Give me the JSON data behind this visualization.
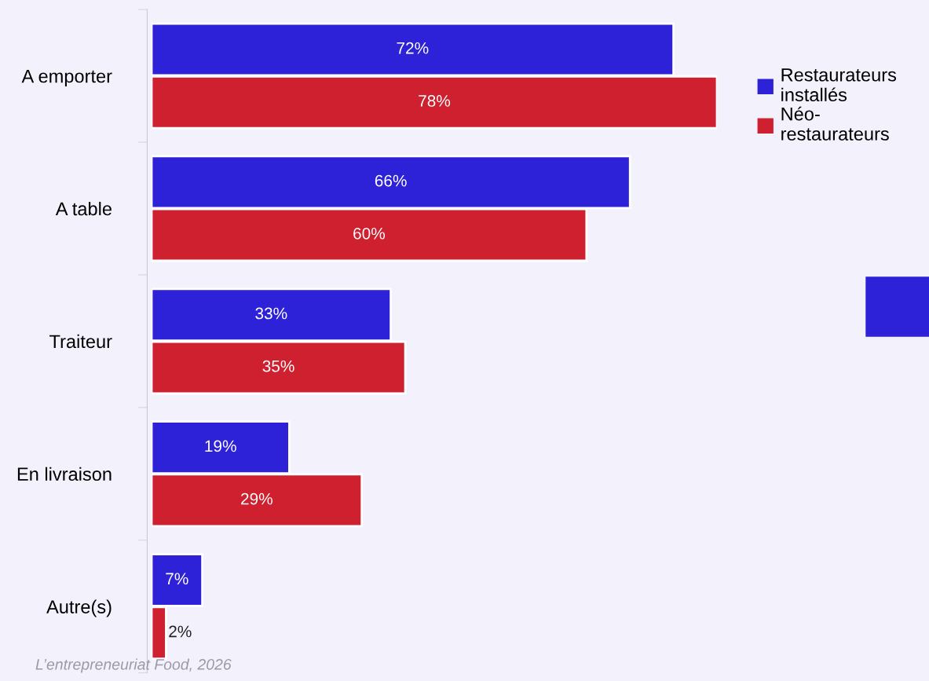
{
  "chart_data": {
    "type": "bar",
    "orientation": "horizontal",
    "categories": [
      "A emporter",
      "A table",
      "Traiteur",
      "En livraison",
      "Autre(s)"
    ],
    "series": [
      {
        "name": "Restaurateurs\ninstallés",
        "color": "#2e22d8",
        "values": [
          72,
          66,
          33,
          19,
          7
        ],
        "value_labels": [
          "72%",
          "66%",
          "33%",
          "19%",
          "7%"
        ]
      },
      {
        "name": "Néo-\nrestaurateurs",
        "color": "#cf2030",
        "values": [
          78,
          60,
          35,
          29,
          2
        ],
        "value_labels": [
          "78%",
          "60%",
          "35%",
          "29%",
          "2%"
        ]
      }
    ],
    "legend": "right",
    "grid": false,
    "annotations": [
      "L’entrepreneuriat Food, 2026"
    ]
  }
}
